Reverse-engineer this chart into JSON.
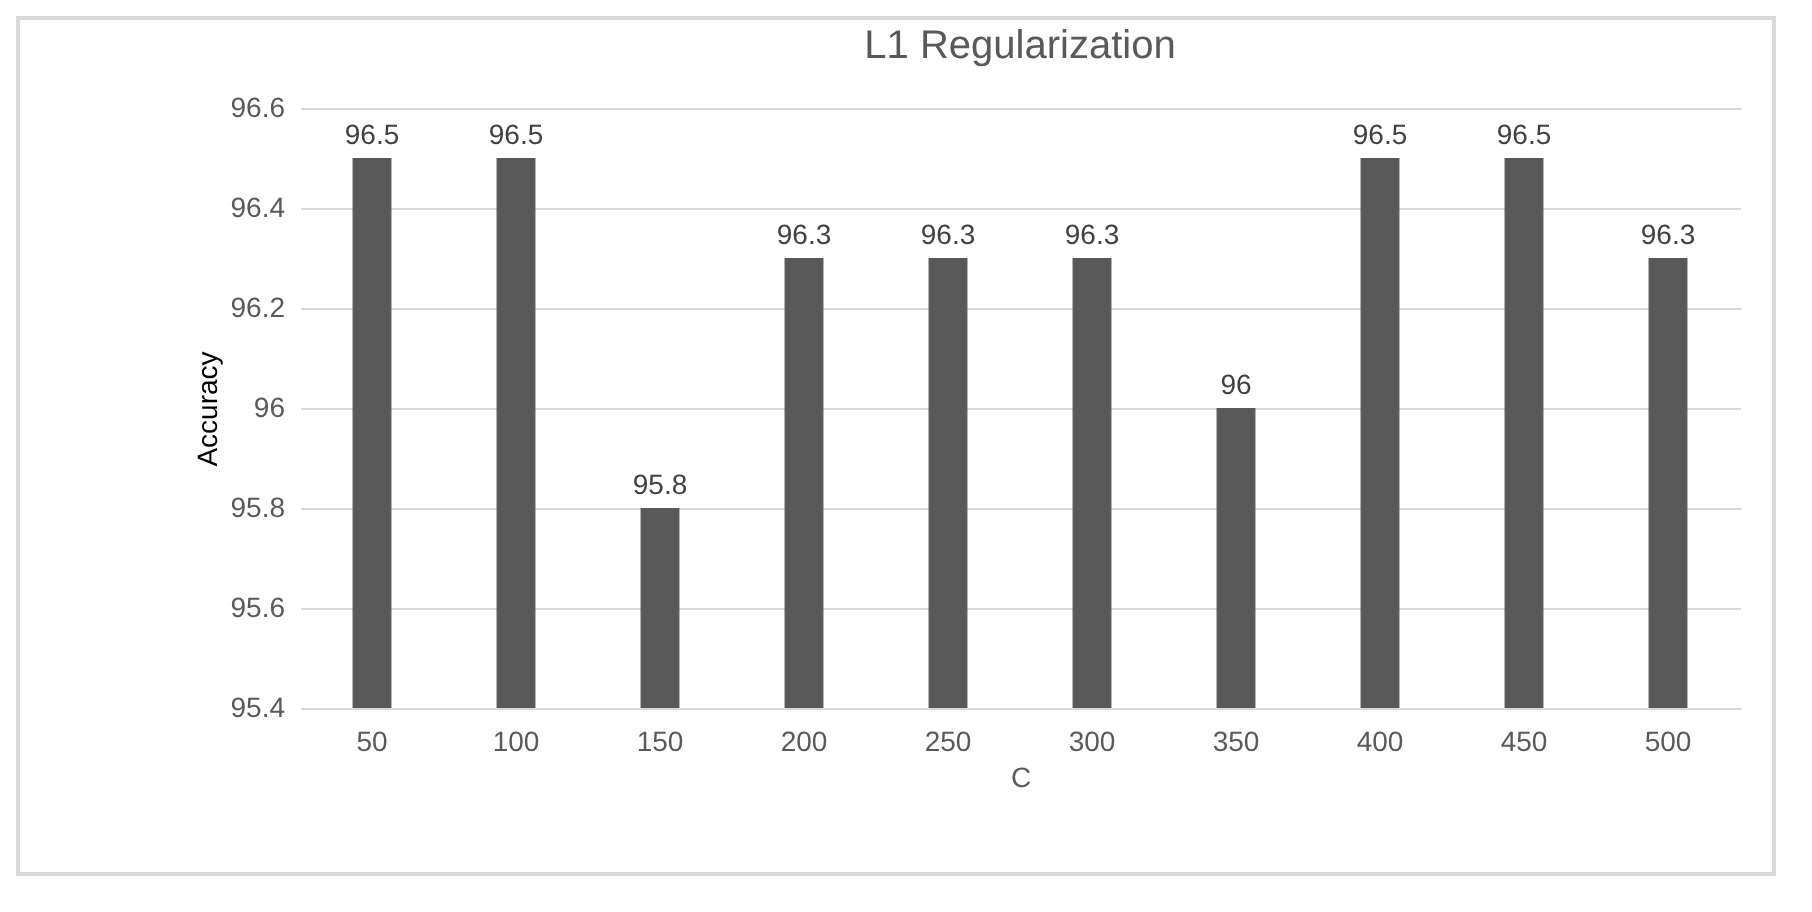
{
  "chart_data": {
    "type": "bar",
    "title": "L1 Regularization",
    "xlabel": "C",
    "ylabel": "Accuracy",
    "categories": [
      "50",
      "100",
      "150",
      "200",
      "250",
      "300",
      "350",
      "400",
      "450",
      "500"
    ],
    "values": [
      96.5,
      96.5,
      95.8,
      96.3,
      96.3,
      96.3,
      96,
      96.5,
      96.5,
      96.3
    ],
    "color": "#595959",
    "ylim": [
      95.4,
      96.6
    ],
    "yticks": [
      95.4,
      95.6,
      95.8,
      96,
      96.2,
      96.4,
      96.6
    ],
    "grid": "y",
    "data_labels": true
  }
}
